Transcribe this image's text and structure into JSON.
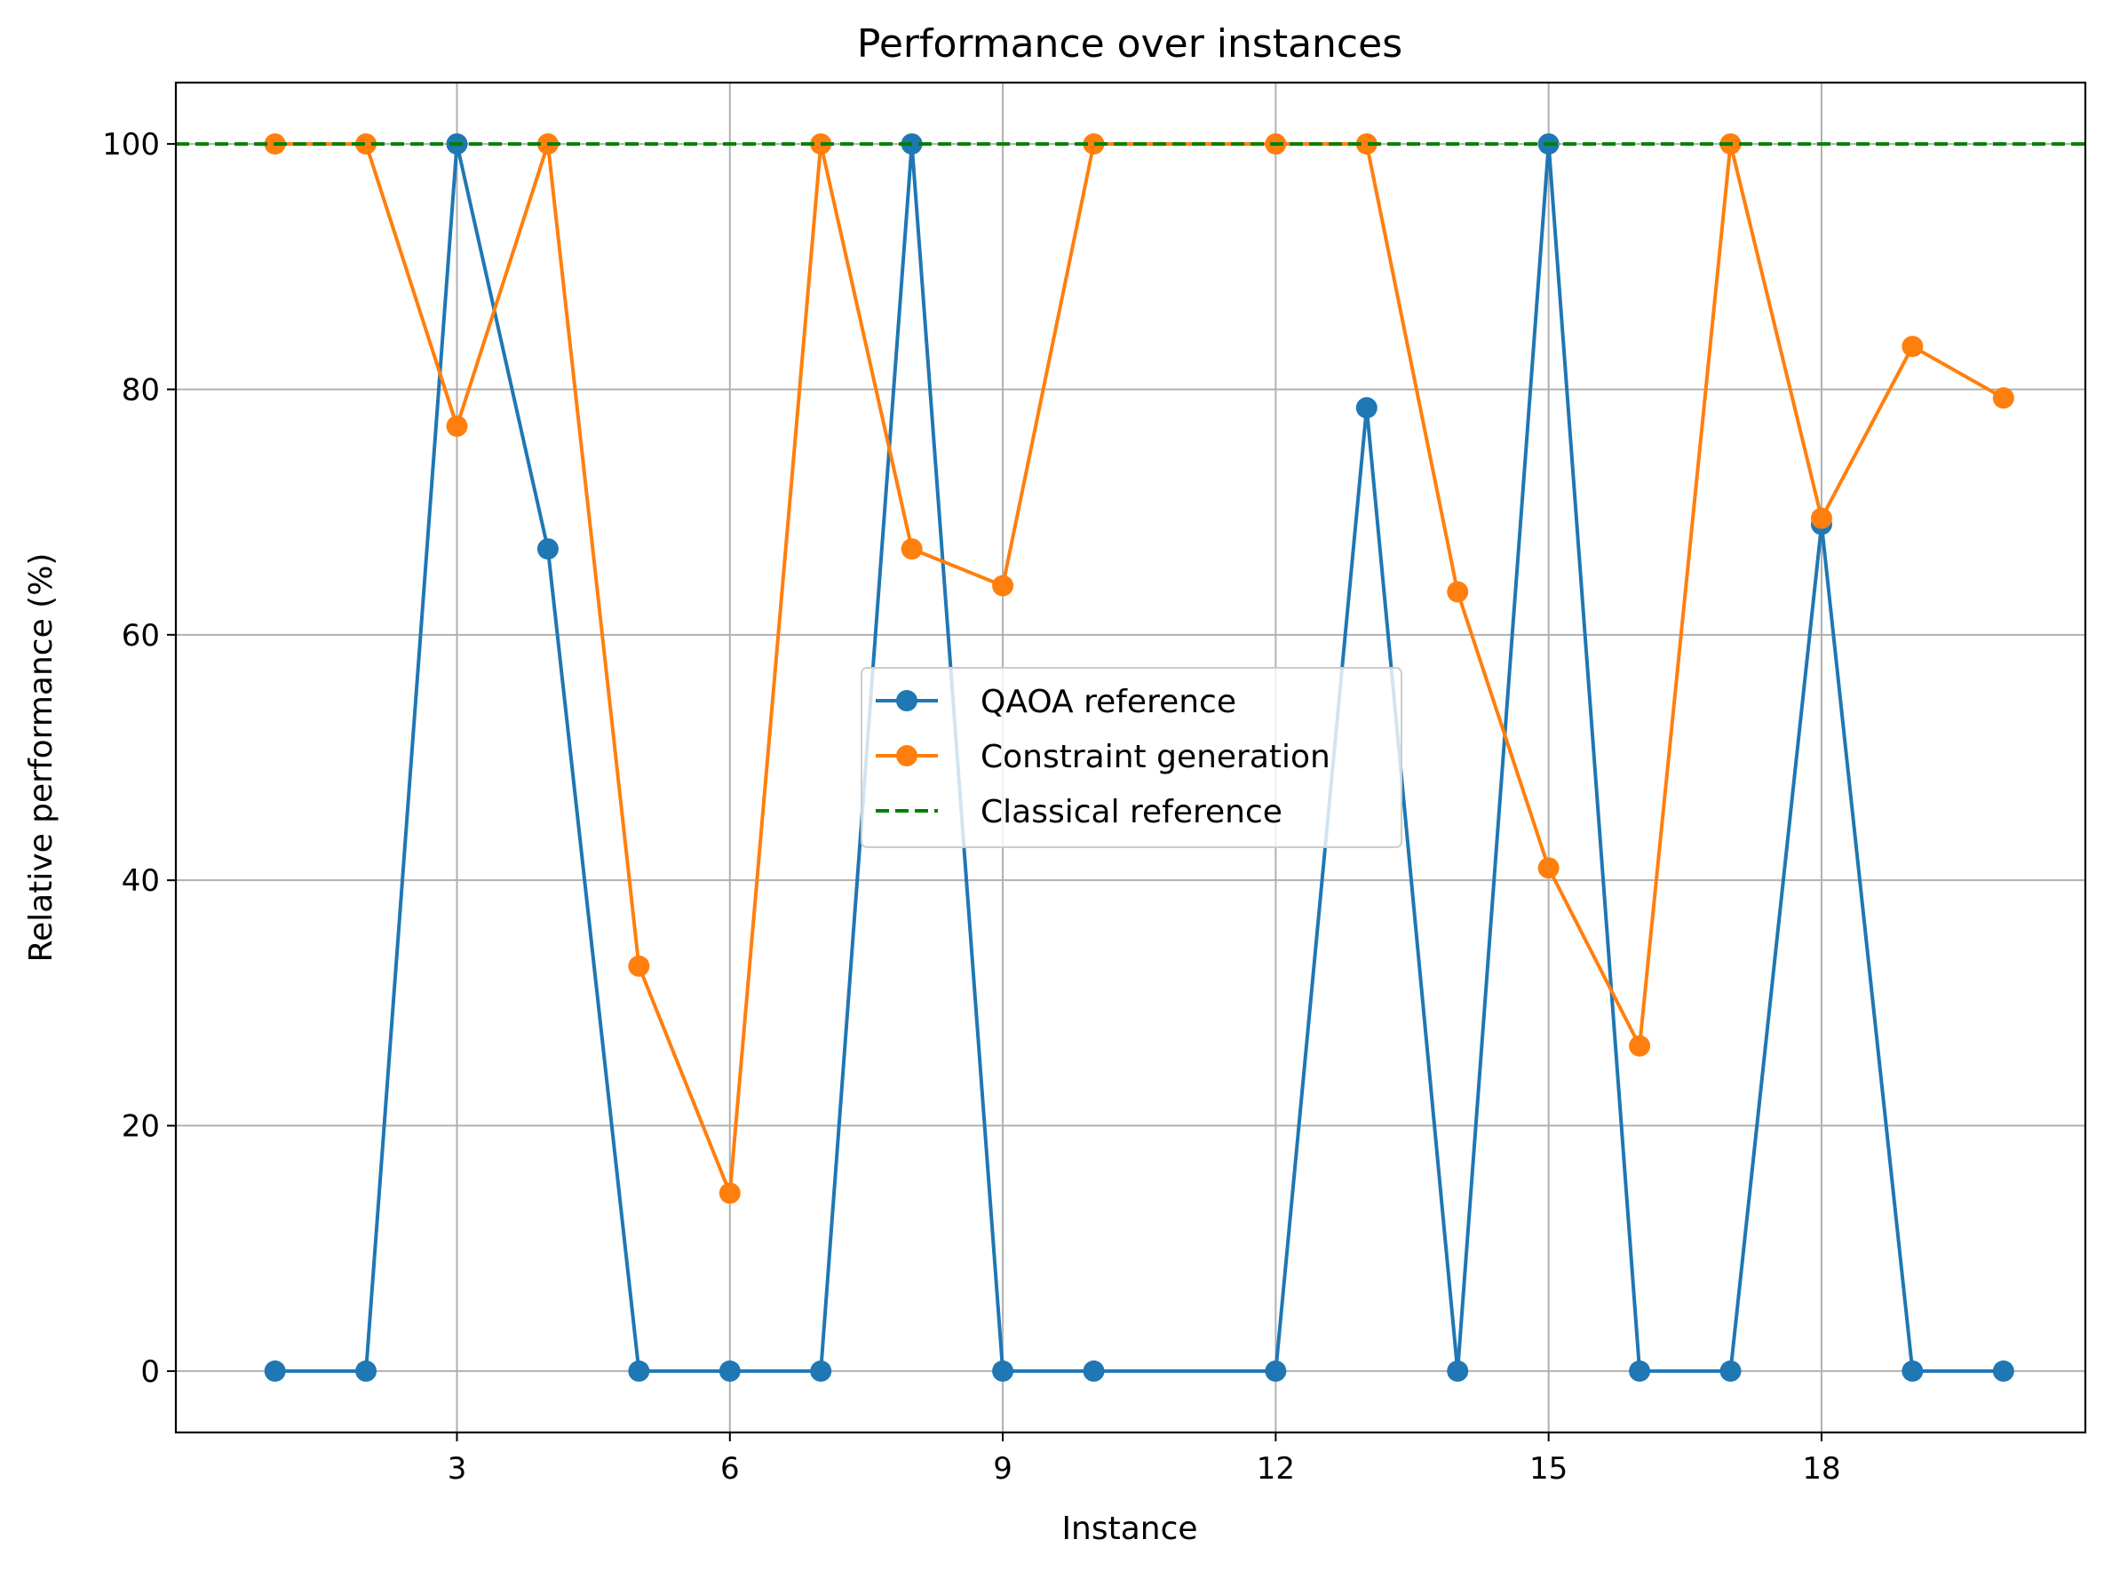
{
  "chart_data": {
    "type": "line",
    "title": "Performance over instances",
    "xlabel": "Instance",
    "ylabel": "Relative performance (%)",
    "xlim": [
      -0.09,
      20.9
    ],
    "ylim": [
      -5,
      105
    ],
    "xticks": [
      3,
      6,
      9,
      12,
      15,
      18
    ],
    "yticks": [
      0,
      20,
      40,
      60,
      80,
      100
    ],
    "grid": true,
    "legend_position": "center",
    "x": [
      1,
      2,
      3,
      4,
      5,
      6,
      7,
      8,
      9,
      10,
      11,
      12,
      13,
      14,
      15,
      16,
      17,
      18,
      19,
      20
    ],
    "series": [
      {
        "name": "QAOA reference",
        "color": "#1f77b4",
        "style": "solid-marker",
        "points": [
          [
            1,
            0
          ],
          [
            2,
            0
          ],
          [
            3,
            100
          ],
          [
            4,
            67
          ],
          [
            5,
            0
          ],
          [
            6,
            0
          ],
          [
            7,
            0
          ],
          [
            8,
            100
          ],
          [
            9,
            0
          ],
          [
            10,
            0
          ],
          [
            12,
            0
          ],
          [
            13,
            78.5
          ],
          [
            14,
            0
          ],
          [
            15,
            100
          ],
          [
            16,
            0
          ],
          [
            17,
            0
          ],
          [
            18,
            69
          ],
          [
            19,
            0
          ],
          [
            20,
            0
          ]
        ]
      },
      {
        "name": "Constraint generation",
        "color": "#ff7f0e",
        "style": "solid-marker",
        "points": [
          [
            1,
            100
          ],
          [
            2,
            100
          ],
          [
            3,
            77
          ],
          [
            4,
            100
          ],
          [
            5,
            33
          ],
          [
            6,
            14.5
          ],
          [
            7,
            100
          ],
          [
            8,
            67
          ],
          [
            9,
            64
          ],
          [
            10,
            100
          ],
          [
            12,
            100
          ],
          [
            13,
            100
          ],
          [
            14,
            63.5
          ],
          [
            15,
            41
          ],
          [
            16,
            26.5
          ],
          [
            17,
            100
          ],
          [
            18,
            69.5
          ],
          [
            19,
            83.5
          ],
          [
            20,
            79.3
          ]
        ]
      },
      {
        "name": "Classical reference",
        "color": "#008000",
        "style": "dashed",
        "constant": 100
      }
    ]
  }
}
